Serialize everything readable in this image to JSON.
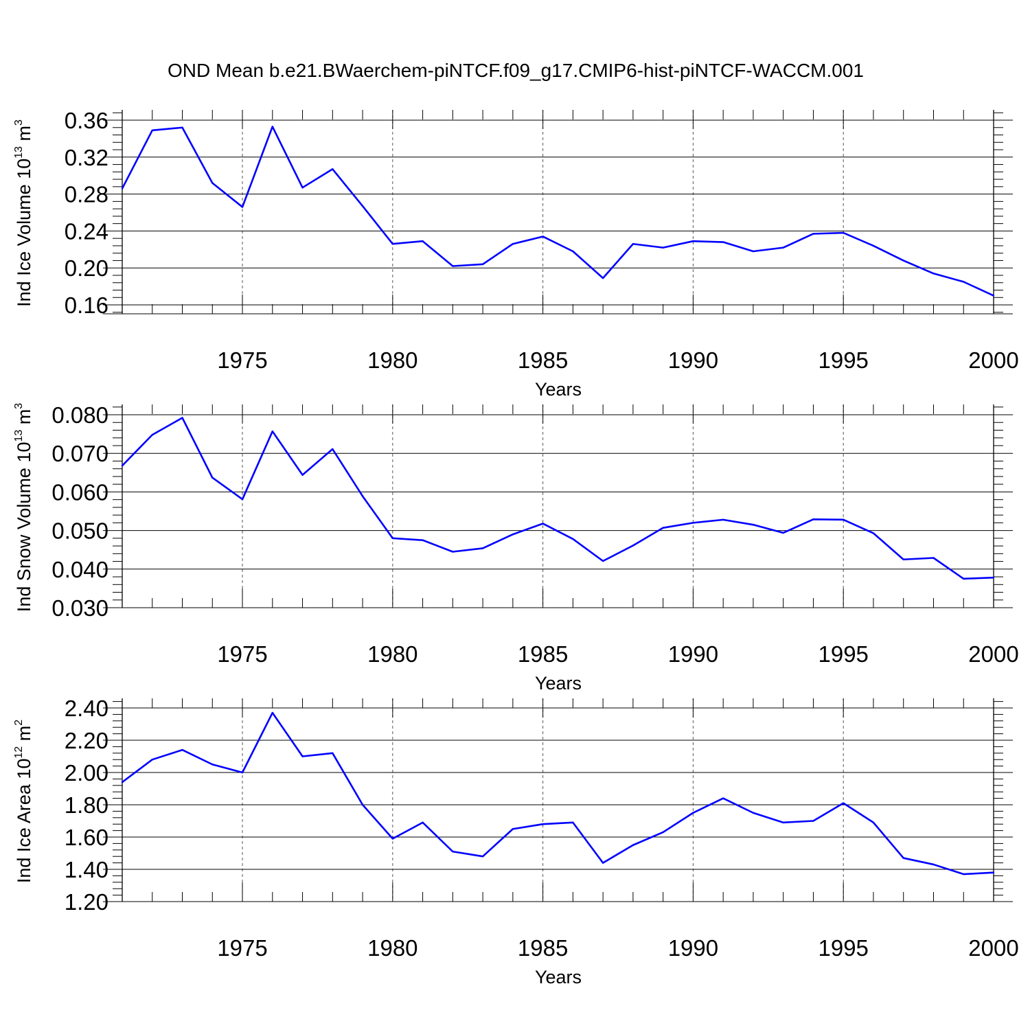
{
  "figure": {
    "title": "OND Mean b.e21.BWaerchem-piNTCF.f09_g17.CMIP6-hist-piNTCF-WACCM.001",
    "line_color": "#0000ff"
  },
  "chart_data": [
    {
      "type": "line",
      "xlabel": "Years",
      "ylabel": {
        "text": "Ind Ice Volume 10",
        "exp": "13",
        "unit": " m",
        "unit_exp": "3"
      },
      "xlim": [
        1971,
        2000
      ],
      "ylim": [
        0.15,
        0.36
      ],
      "x_ticks": [
        1975,
        1980,
        1985,
        1990,
        1995,
        2000
      ],
      "x_tick_labels": [
        "1975",
        "1980",
        "1985",
        "1990",
        "1995",
        "2000"
      ],
      "y_ticks": [
        0.16,
        0.2,
        0.24,
        0.28,
        0.32,
        0.36
      ],
      "y_tick_labels": [
        "0.16",
        "0.20",
        "0.24",
        "0.28",
        "0.32",
        "0.36"
      ],
      "grid": "vertical-dashed",
      "series": [
        {
          "x": [
            1971,
            1972,
            1973,
            1974,
            1975,
            1976,
            1977,
            1978,
            1979,
            1980,
            1981,
            1982,
            1983,
            1984,
            1985,
            1986,
            1987,
            1988,
            1989,
            1990,
            1991,
            1992,
            1993,
            1994,
            1995,
            1996,
            1997,
            1998,
            1999,
            2000
          ],
          "values": [
            0.286,
            0.349,
            0.352,
            0.292,
            0.266,
            0.353,
            0.287,
            0.307,
            0.267,
            0.226,
            0.229,
            0.202,
            0.204,
            0.226,
            0.234,
            0.218,
            0.189,
            0.226,
            0.222,
            0.229,
            0.228,
            0.218,
            0.222,
            0.237,
            0.238,
            0.224,
            0.208,
            0.194,
            0.185,
            0.17
          ]
        }
      ]
    },
    {
      "type": "line",
      "xlabel": "Years",
      "ylabel": {
        "text": "Ind Snow Volume 10",
        "exp": "13",
        "unit": " m",
        "unit_exp": "3"
      },
      "xlim": [
        1971,
        2000
      ],
      "ylim": [
        0.03,
        0.08
      ],
      "x_ticks": [
        1975,
        1980,
        1985,
        1990,
        1995,
        2000
      ],
      "x_tick_labels": [
        "1975",
        "1980",
        "1985",
        "1990",
        "1995",
        "2000"
      ],
      "y_ticks": [
        0.03,
        0.04,
        0.05,
        0.06,
        0.07,
        0.08
      ],
      "y_tick_labels": [
        "0.030",
        "0.040",
        "0.050",
        "0.060",
        "0.070",
        "0.080"
      ],
      "grid": "vertical-dashed",
      "series": [
        {
          "x": [
            1971,
            1972,
            1973,
            1974,
            1975,
            1976,
            1977,
            1978,
            1979,
            1980,
            1981,
            1982,
            1983,
            1984,
            1985,
            1986,
            1987,
            1988,
            1989,
            1990,
            1991,
            1992,
            1993,
            1994,
            1995,
            1996,
            1997,
            1998,
            1999,
            2000
          ],
          "values": [
            0.0668,
            0.0748,
            0.0792,
            0.0637,
            0.0581,
            0.0757,
            0.0644,
            0.0711,
            0.0589,
            0.048,
            0.0475,
            0.0445,
            0.0454,
            0.049,
            0.0518,
            0.0478,
            0.0421,
            0.0461,
            0.0507,
            0.052,
            0.0528,
            0.0515,
            0.0494,
            0.0529,
            0.0528,
            0.0493,
            0.0425,
            0.0429,
            0.0375,
            0.0378
          ]
        }
      ]
    },
    {
      "type": "line",
      "xlabel": "Years",
      "ylabel": {
        "text": "Ind Ice Area 10",
        "exp": "12",
        "unit": " m",
        "unit_exp": "2"
      },
      "xlim": [
        1971,
        2000
      ],
      "ylim": [
        1.2,
        2.4
      ],
      "x_ticks": [
        1975,
        1980,
        1985,
        1990,
        1995,
        2000
      ],
      "x_tick_labels": [
        "1975",
        "1980",
        "1985",
        "1990",
        "1995",
        "2000"
      ],
      "y_ticks": [
        1.2,
        1.4,
        1.6,
        1.8,
        2.0,
        2.2,
        2.4
      ],
      "y_tick_labels": [
        "1.20",
        "1.40",
        "1.60",
        "1.80",
        "2.00",
        "2.20",
        "2.40"
      ],
      "grid": "vertical-dashed",
      "series": [
        {
          "x": [
            1971,
            1972,
            1973,
            1974,
            1975,
            1976,
            1977,
            1978,
            1979,
            1980,
            1981,
            1982,
            1983,
            1984,
            1985,
            1986,
            1987,
            1988,
            1989,
            1990,
            1991,
            1992,
            1993,
            1994,
            1995,
            1996,
            1997,
            1998,
            1999,
            2000
          ],
          "values": [
            1.94,
            2.08,
            2.14,
            2.05,
            2.0,
            2.37,
            2.1,
            2.12,
            1.8,
            1.59,
            1.69,
            1.51,
            1.48,
            1.65,
            1.68,
            1.69,
            1.44,
            1.55,
            1.63,
            1.75,
            1.84,
            1.75,
            1.69,
            1.7,
            1.81,
            1.69,
            1.47,
            1.43,
            1.37,
            1.38
          ]
        }
      ]
    }
  ]
}
